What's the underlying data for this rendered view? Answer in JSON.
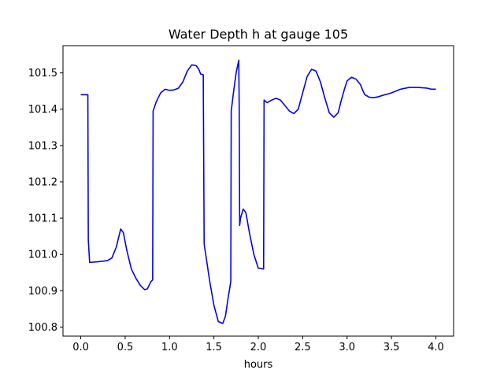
{
  "chart_data": {
    "type": "line",
    "title": "Water Depth h at gauge 105",
    "xlabel": "hours",
    "ylabel": "",
    "xlim": [
      -0.2,
      4.2
    ],
    "ylim": [
      100.775,
      101.575
    ],
    "xticks": [
      0.0,
      0.5,
      1.0,
      1.5,
      2.0,
      2.5,
      3.0,
      3.5,
      4.0
    ],
    "xtick_labels": [
      "0.0",
      "0.5",
      "1.0",
      "1.5",
      "2.0",
      "2.5",
      "3.0",
      "3.5",
      "4.0"
    ],
    "yticks": [
      100.8,
      100.9,
      101.0,
      101.1,
      101.2,
      101.3,
      101.4,
      101.5
    ],
    "ytick_labels": [
      "100.8",
      "100.9",
      "101.0",
      "101.1",
      "101.2",
      "101.3",
      "101.4",
      "101.5"
    ],
    "grid": false,
    "legend": "none",
    "series": [
      {
        "color": "#0000ff",
        "x": [
          0.0,
          0.08,
          0.085,
          0.1,
          0.2,
          0.3,
          0.35,
          0.4,
          0.45,
          0.48,
          0.52,
          0.57,
          0.62,
          0.67,
          0.72,
          0.75,
          0.79,
          0.81,
          0.815,
          0.85,
          0.9,
          0.95,
          1.0,
          1.05,
          1.1,
          1.15,
          1.2,
          1.25,
          1.3,
          1.33,
          1.35,
          1.38,
          1.39,
          1.395,
          1.42,
          1.45,
          1.5,
          1.55,
          1.6,
          1.63,
          1.66,
          1.69,
          1.695,
          1.72,
          1.75,
          1.78,
          1.785,
          1.79,
          1.8,
          1.83,
          1.86,
          1.9,
          1.95,
          2.0,
          2.06,
          2.065,
          2.1,
          2.15,
          2.2,
          2.25,
          2.3,
          2.35,
          2.4,
          2.45,
          2.5,
          2.55,
          2.6,
          2.65,
          2.7,
          2.75,
          2.8,
          2.85,
          2.9,
          2.93,
          2.97,
          3.0,
          3.05,
          3.1,
          3.15,
          3.18,
          3.2,
          3.25,
          3.3,
          3.35,
          3.4,
          3.5,
          3.6,
          3.7,
          3.8,
          3.9,
          3.95,
          4.0
        ],
        "y": [
          101.44,
          101.44,
          101.04,
          100.978,
          100.98,
          100.983,
          100.99,
          101.02,
          101.07,
          101.06,
          101.01,
          100.96,
          100.935,
          100.915,
          100.903,
          100.905,
          100.925,
          100.93,
          101.395,
          101.42,
          101.445,
          101.455,
          101.452,
          101.453,
          101.458,
          101.475,
          101.505,
          101.522,
          101.52,
          101.51,
          101.497,
          101.495,
          101.03,
          101.02,
          100.98,
          100.93,
          100.86,
          100.815,
          100.81,
          100.83,
          100.88,
          100.925,
          101.395,
          101.445,
          101.5,
          101.535,
          101.4,
          101.08,
          101.1,
          101.125,
          101.115,
          101.06,
          101.0,
          100.962,
          100.96,
          101.425,
          101.418,
          101.425,
          101.43,
          101.425,
          101.41,
          101.395,
          101.388,
          101.4,
          101.445,
          101.49,
          101.51,
          101.505,
          101.475,
          101.43,
          101.39,
          101.378,
          101.39,
          101.42,
          101.455,
          101.478,
          101.488,
          101.483,
          101.468,
          101.45,
          101.44,
          101.433,
          101.432,
          101.434,
          101.438,
          101.445,
          101.455,
          101.46,
          101.46,
          101.458,
          101.455,
          101.455
        ]
      }
    ]
  }
}
